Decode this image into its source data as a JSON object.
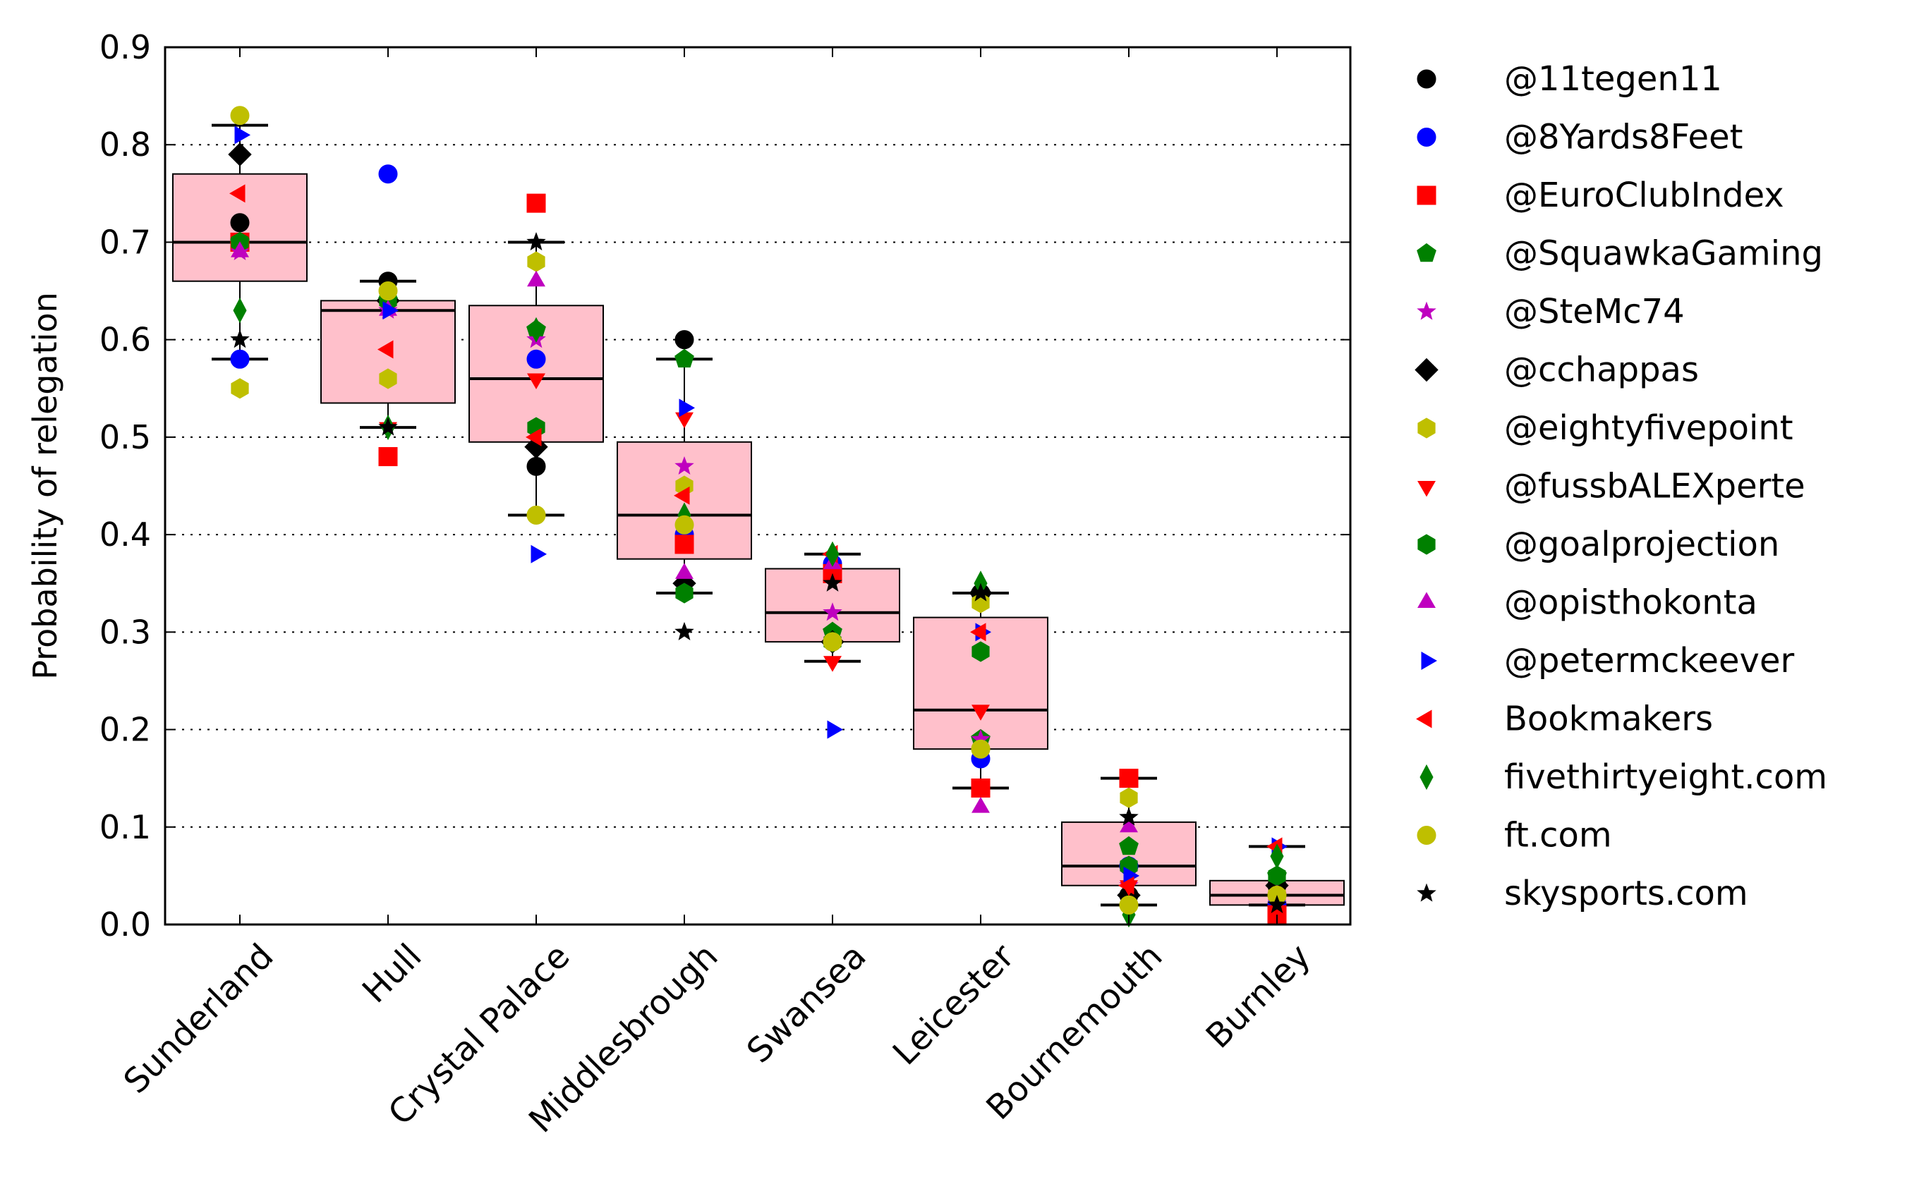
{
  "chart_data": {
    "type": "box-scatter",
    "title": "",
    "xlabel": "",
    "ylabel": "Probability of relegation",
    "ylim": [
      0,
      0.9
    ],
    "yticks": [
      "0.0",
      "0.1",
      "0.2",
      "0.3",
      "0.4",
      "0.5",
      "0.6",
      "0.7",
      "0.8",
      "0.9"
    ],
    "grid": "horizontal dotted",
    "legend_position": "right, outside plot",
    "categories": [
      "Sunderland",
      "Hull",
      "Crystal Palace",
      "Middlesbrough",
      "Swansea",
      "Leicester",
      "Bournemouth",
      "Burnley"
    ],
    "box_color": "#ffc0cb",
    "boxes": [
      {
        "whisker_low": 0.58,
        "q1": 0.66,
        "median": 0.7,
        "q3": 0.77,
        "whisker_high": 0.82
      },
      {
        "whisker_low": 0.51,
        "q1": 0.535,
        "median": 0.63,
        "q3": 0.64,
        "whisker_high": 0.66
      },
      {
        "whisker_low": 0.42,
        "q1": 0.495,
        "median": 0.56,
        "q3": 0.635,
        "whisker_high": 0.7
      },
      {
        "whisker_low": 0.34,
        "q1": 0.375,
        "median": 0.42,
        "q3": 0.495,
        "whisker_high": 0.58
      },
      {
        "whisker_low": 0.27,
        "q1": 0.29,
        "median": 0.32,
        "q3": 0.365,
        "whisker_high": 0.38
      },
      {
        "whisker_low": 0.14,
        "q1": 0.18,
        "median": 0.22,
        "q3": 0.315,
        "whisker_high": 0.34
      },
      {
        "whisker_low": 0.02,
        "q1": 0.04,
        "median": 0.06,
        "q3": 0.105,
        "whisker_high": 0.15
      },
      {
        "whisker_low": 0.02,
        "q1": 0.02,
        "median": 0.03,
        "q3": 0.045,
        "whisker_high": 0.08
      }
    ],
    "series": [
      {
        "name": "@11tegen11",
        "color": "#000000",
        "marker": "circle",
        "values": [
          0.72,
          0.66,
          0.47,
          0.6,
          0.29,
          0.34,
          0.03,
          0.04
        ]
      },
      {
        "name": "@8Yards8Feet",
        "color": "#0000ff",
        "marker": "circle",
        "values": [
          0.58,
          0.77,
          0.58,
          0.4,
          0.37,
          0.17,
          0.06,
          0.02
        ]
      },
      {
        "name": "@EuroClubIndex",
        "color": "#ff0000",
        "marker": "square",
        "values": [
          0.7,
          0.48,
          0.74,
          0.39,
          0.36,
          0.14,
          0.15,
          0.01
        ]
      },
      {
        "name": "@SquawkaGaming",
        "color": "#008000",
        "marker": "pentagon",
        "values": [
          0.7,
          0.64,
          0.61,
          0.58,
          0.3,
          0.19,
          0.08,
          0.05
        ]
      },
      {
        "name": "@SteMc74",
        "color": "#bf00bf",
        "marker": "star",
        "values": [
          0.69,
          0.63,
          0.6,
          0.47,
          0.32,
          0.19,
          0.04,
          0.03
        ]
      },
      {
        "name": "@cchappas",
        "color": "#000000",
        "marker": "diamond",
        "values": [
          0.79,
          0.64,
          0.49,
          0.35,
          0.29,
          0.34,
          0.03,
          0.04
        ]
      },
      {
        "name": "@eightyfivepoint",
        "color": "#bfbf00",
        "marker": "hexagon",
        "values": [
          0.55,
          0.56,
          0.68,
          0.45,
          0.29,
          0.33,
          0.13,
          0.03
        ]
      },
      {
        "name": "@fussbALEXperte",
        "color": "#ff0000",
        "marker": "triangle-down",
        "values": [
          0.7,
          0.51,
          0.56,
          0.52,
          0.27,
          0.22,
          0.04,
          0.01
        ]
      },
      {
        "name": "@goalprojection",
        "color": "#008000",
        "marker": "hexagon",
        "values": [
          0.7,
          0.64,
          0.51,
          0.34,
          0.29,
          0.28,
          0.06,
          0.05
        ]
      },
      {
        "name": "@opisthokonta",
        "color": "#bf00bf",
        "marker": "triangle-up",
        "values": [
          0.69,
          0.63,
          0.66,
          0.36,
          0.37,
          0.12,
          0.1,
          0.03
        ]
      },
      {
        "name": "@petermckeever",
        "color": "#0000ff",
        "marker": "triangle-right",
        "values": [
          0.81,
          0.63,
          0.38,
          0.53,
          0.2,
          0.3,
          0.05,
          0.08
        ]
      },
      {
        "name": "Bookmakers",
        "color": "#ff0000",
        "marker": "triangle-left",
        "values": [
          0.75,
          0.59,
          0.5,
          0.44,
          0.38,
          0.3,
          0.04,
          0.08
        ]
      },
      {
        "name": "fivethirtyeight.com",
        "color": "#008000",
        "marker": "thin-diamond",
        "values": [
          0.63,
          0.51,
          0.61,
          0.42,
          0.38,
          0.35,
          0.01,
          0.07
        ]
      },
      {
        "name": "ft.com",
        "color": "#bfbf00",
        "marker": "circle",
        "values": [
          0.83,
          0.65,
          0.42,
          0.41,
          0.29,
          0.18,
          0.02,
          0.03
        ]
      },
      {
        "name": "skysports.com",
        "color": "#000000",
        "marker": "star",
        "values": [
          0.6,
          0.51,
          0.7,
          0.3,
          0.35,
          0.34,
          0.11,
          0.02
        ]
      }
    ]
  }
}
